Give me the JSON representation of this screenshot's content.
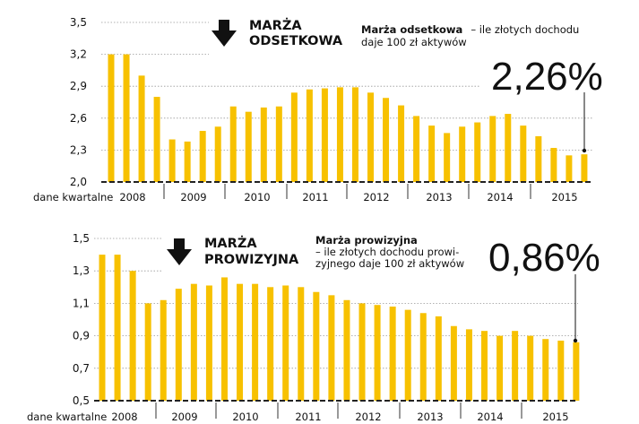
{
  "chart_data": [
    {
      "type": "bar",
      "title": "MARŻA ODSETKOWA",
      "description_bold": "Marża odsetkowa",
      "description_lines": [
        "– ile złotych dochodu",
        "daje 100 zł aktywów"
      ],
      "highlight": "2,26%",
      "xlabel": "dane kwartalne",
      "year_labels": [
        "2008",
        "2009",
        "2010",
        "2011",
        "2012",
        "2013",
        "2014",
        "2015"
      ],
      "y_ticks": [
        "2,0",
        "2,3",
        "2,6",
        "2,9",
        "3,2",
        "3,5"
      ],
      "ylim": [
        2.0,
        3.5
      ],
      "grid": true,
      "bar_color": "#F7C100",
      "values": [
        3.2,
        3.2,
        3.0,
        2.8,
        2.4,
        2.38,
        2.48,
        2.52,
        2.71,
        2.66,
        2.7,
        2.71,
        2.84,
        2.87,
        2.88,
        2.89,
        2.89,
        2.84,
        2.79,
        2.72,
        2.62,
        2.53,
        2.46,
        2.52,
        2.56,
        2.62,
        2.64,
        2.53,
        2.43,
        2.32,
        2.25,
        2.26
      ]
    },
    {
      "type": "bar",
      "title": "MARŻA PROWIZYJNA",
      "description_bold": "Marża prowizyjna",
      "description_lines": [
        "– ile złotych dochodu prowi-",
        "zyjnego daje 100 zł aktywów"
      ],
      "highlight": "0,86%",
      "xlabel": "dane kwartalne",
      "year_labels": [
        "2008",
        "2009",
        "2010",
        "2011",
        "2012",
        "2013",
        "2014",
        "2015"
      ],
      "y_ticks": [
        "0,5",
        "0,7",
        "0,9",
        "1,1",
        "1,3",
        "1,5"
      ],
      "ylim": [
        0.5,
        1.5
      ],
      "grid": true,
      "bar_color": "#F7C100",
      "values": [
        1.4,
        1.4,
        1.3,
        1.1,
        1.12,
        1.19,
        1.22,
        1.21,
        1.26,
        1.22,
        1.22,
        1.2,
        1.21,
        1.2,
        1.17,
        1.15,
        1.12,
        1.1,
        1.09,
        1.08,
        1.06,
        1.04,
        1.02,
        0.96,
        0.94,
        0.93,
        0.9,
        0.93,
        0.9,
        0.88,
        0.87,
        0.86
      ]
    }
  ]
}
